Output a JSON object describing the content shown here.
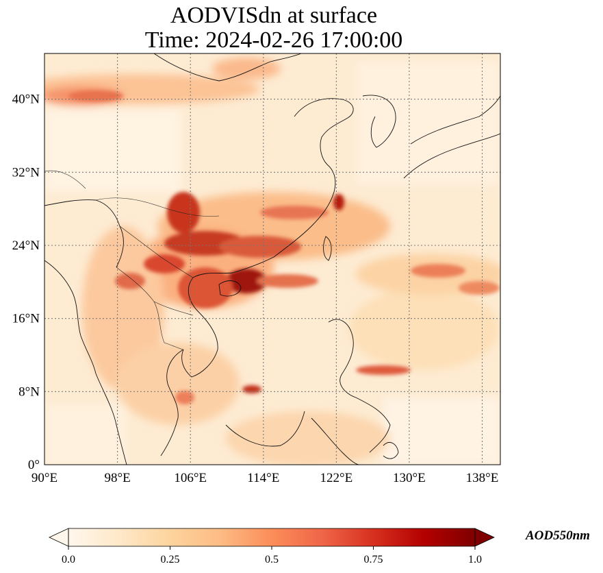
{
  "title": {
    "line1": "AODVISdn at surface",
    "line2": "Time: 2024-02-26 17:00:00"
  },
  "map": {
    "lon_range": [
      90,
      140
    ],
    "lat_range": [
      0,
      45
    ],
    "lon_ticks": [
      "90°E",
      "98°E",
      "106°E",
      "114°E",
      "122°E",
      "130°E",
      "138°E"
    ],
    "lat_ticks": [
      "0°",
      "8°N",
      "16°N",
      "24°N",
      "32°N",
      "40°N"
    ],
    "gridlines": true,
    "variable": "AOD550nm",
    "colormap": "OrRd"
  },
  "colorbar": {
    "label": "AOD550nm",
    "range": [
      0.0,
      1.0
    ],
    "ticks": [
      "0.0",
      "0.25",
      "0.5",
      "0.75",
      "1.0"
    ],
    "colors": [
      "#fff7ec",
      "#fee8c8",
      "#fdd49e",
      "#fdbb84",
      "#fc8d59",
      "#ef6548",
      "#d7301f",
      "#b30000",
      "#7f0000"
    ]
  },
  "features": {
    "aerosol_plumes": [
      {
        "region": "northern band",
        "level": 0.4
      },
      {
        "region": "Sichuan basin",
        "level": 0.85
      },
      {
        "region": "South China / Guangxi",
        "level": 0.9
      },
      {
        "region": "Hainan / Gulf of Tonkin",
        "level": 0.95
      },
      {
        "region": "Indochina west",
        "level": 0.55
      },
      {
        "region": "East China Sea outflow",
        "level": 0.5
      },
      {
        "region": "Pacific streak east",
        "level": 0.55
      }
    ]
  }
}
